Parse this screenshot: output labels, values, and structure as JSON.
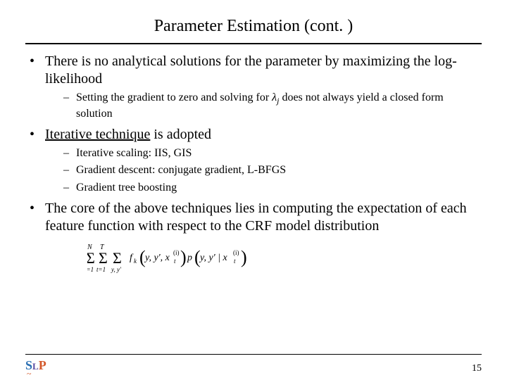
{
  "title": "Parameter Estimation (cont. )",
  "bullets": {
    "b1": "There is no analytical solutions for the parameter by maximizing the log-likelihood",
    "b1s1_pre": "Setting the gradient to zero and solving for ",
    "b1s1_lambda": "λ",
    "b1s1_j": "j",
    "b1s1_post": " does not always yield a closed form solution",
    "b2_pre": "Iterative technique",
    "b2_post": " is adopted",
    "b2s1": "Iterative scaling: IIS, GIS",
    "b2s2": "Gradient descent: conjugate gradient, L-BFGS",
    "b2s3": "Gradient tree boosting",
    "b3": "The core of the above techniques lies in computing the expectation of each feature function with respect to the CRF model distribution"
  },
  "page_number": "15",
  "logo": {
    "s": "S",
    "l": "L",
    "p": "P",
    "tilde": "~"
  },
  "colors": {
    "text": "#000000",
    "background": "#ffffff"
  }
}
